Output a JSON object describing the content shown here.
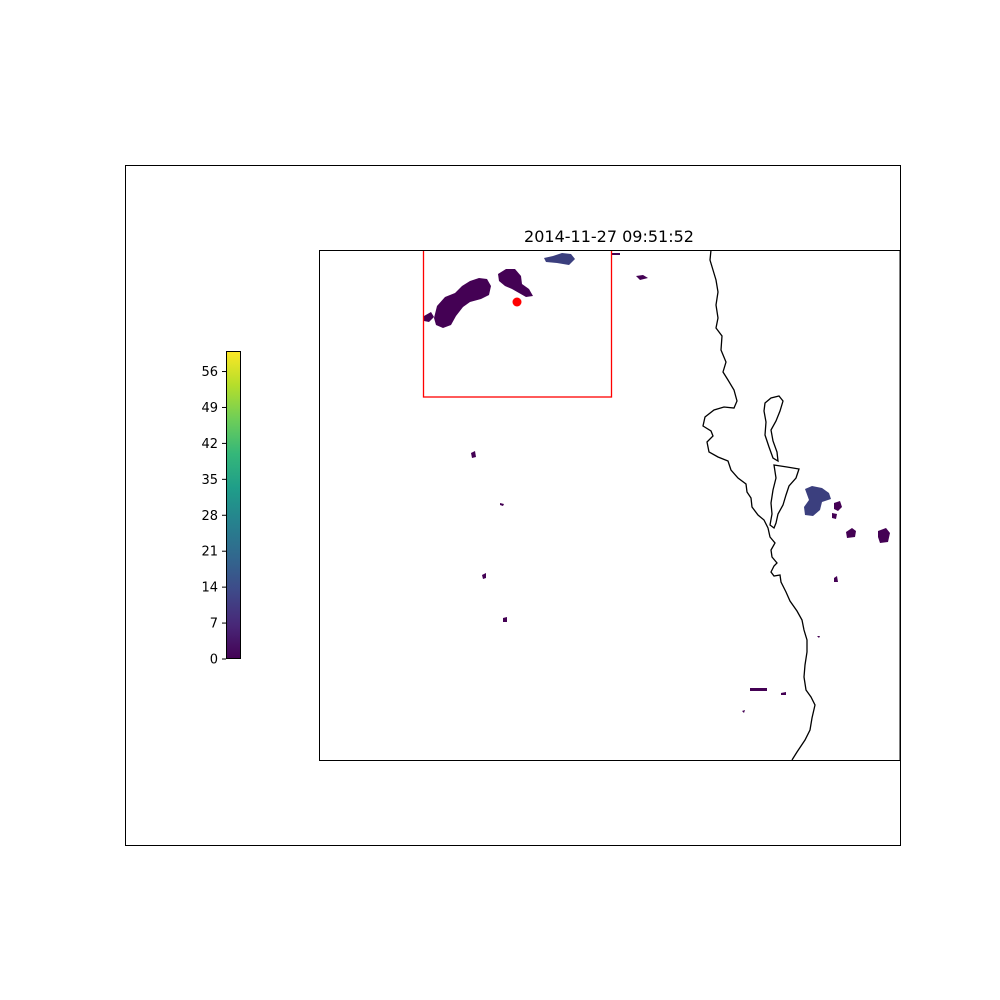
{
  "title": "2014-11-27 09:51:52",
  "colorbar": {
    "colormap": "viridis",
    "range": [
      0,
      60
    ],
    "ticks": [
      "0",
      "7",
      "14",
      "21",
      "28",
      "35",
      "42",
      "49",
      "56"
    ],
    "tick_values": [
      0,
      7,
      14,
      21,
      28,
      35,
      42,
      49,
      56
    ],
    "stops": [
      "#440154",
      "#482878",
      "#3e4a89",
      "#31688e",
      "#26828e",
      "#1f9e89",
      "#35b779",
      "#6ece58",
      "#b5de2b",
      "#fde725"
    ]
  },
  "colors": {
    "coastline": "#000000",
    "subregion_box": "#ff0000",
    "marker": "#ff0000",
    "precip_low": "#440154",
    "precip_mid": "#3b3f7e"
  },
  "map_features": {
    "coastline": "shown",
    "subregion_box": "shown",
    "location_marker": "shown"
  }
}
